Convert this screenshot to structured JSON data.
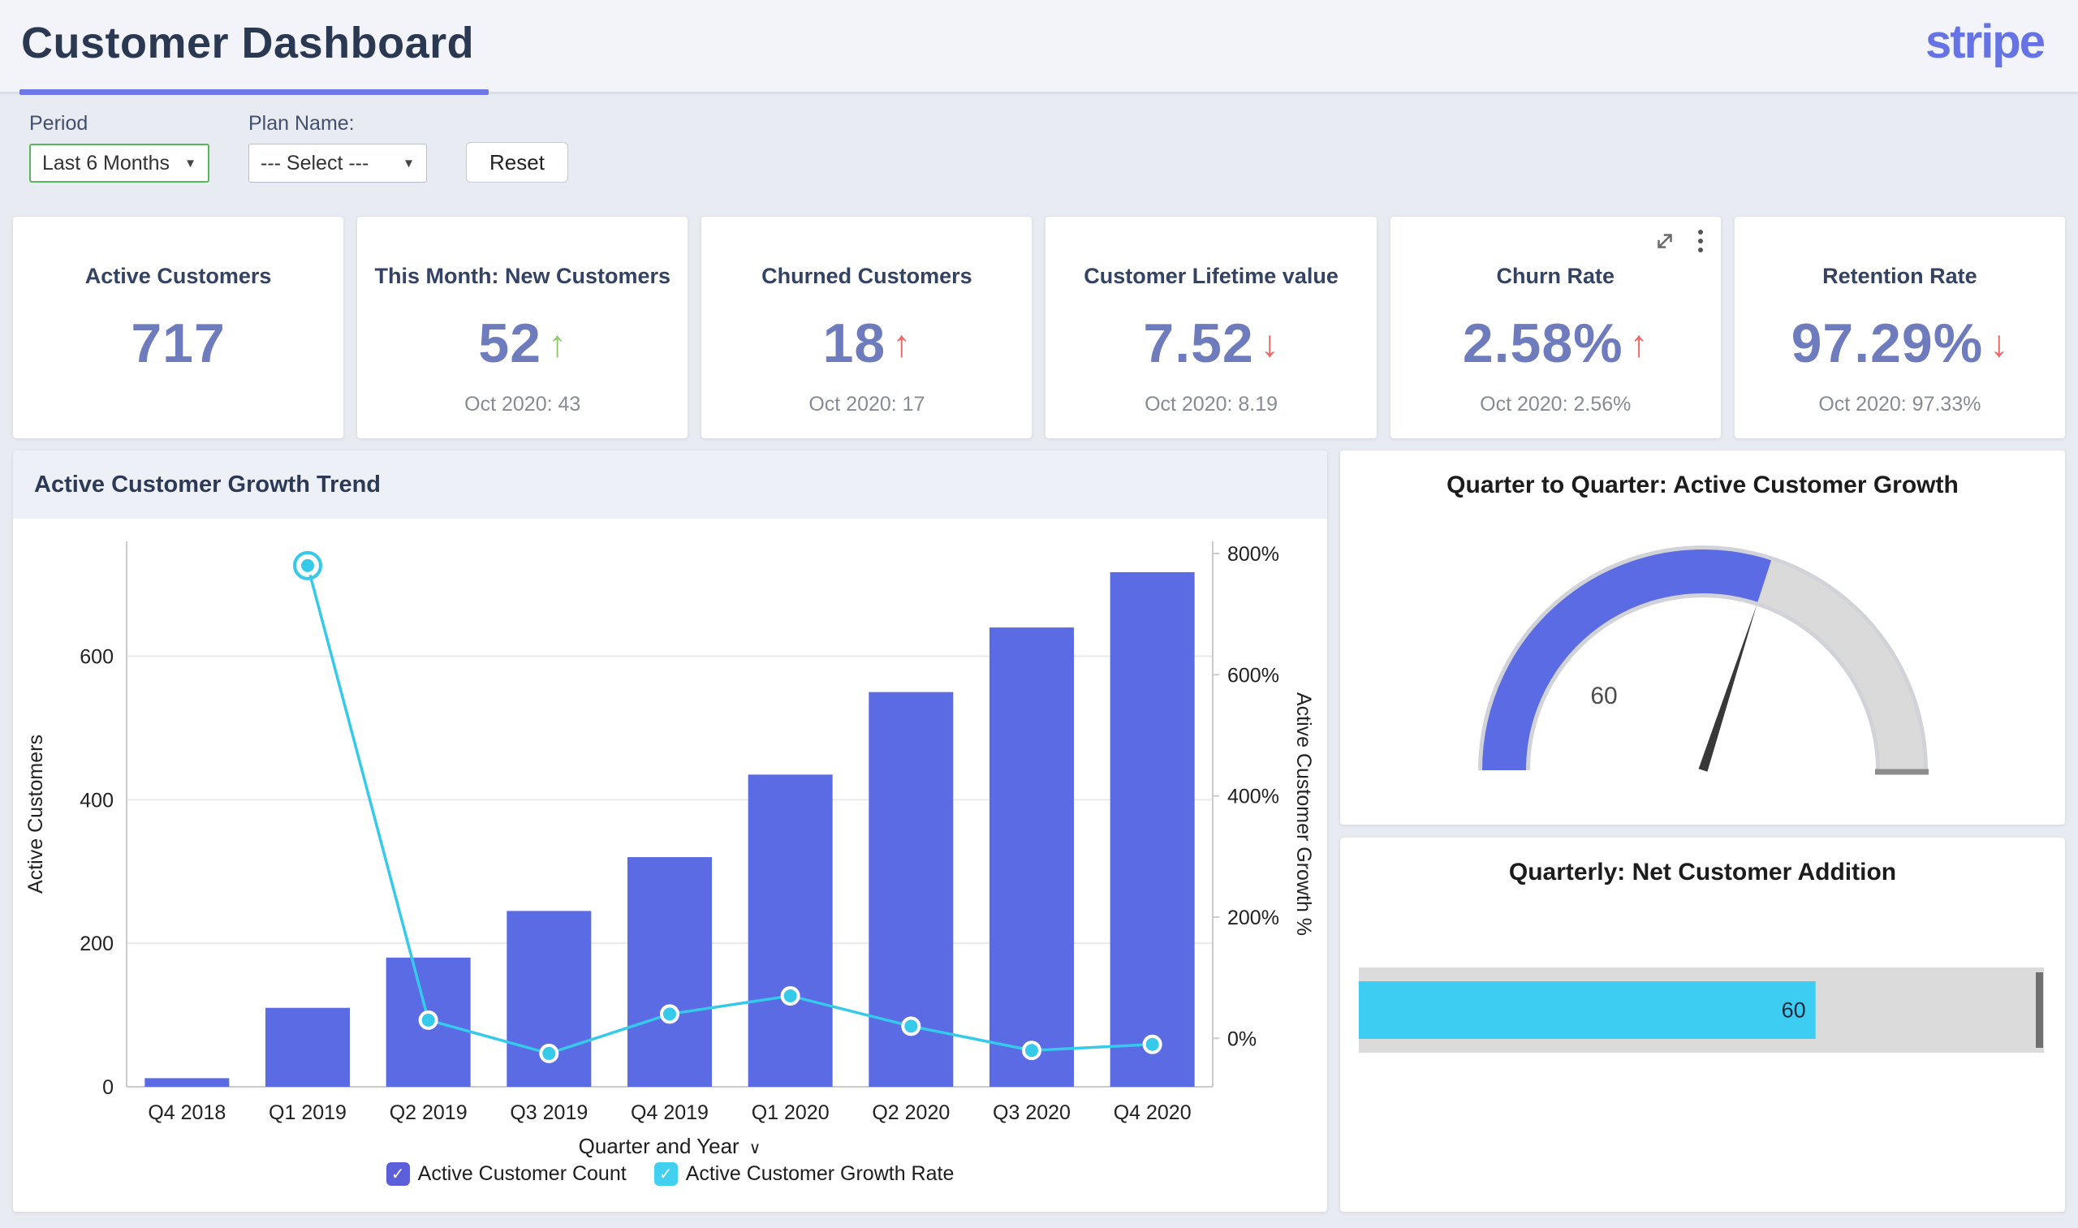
{
  "header": {
    "title": "Customer Dashboard",
    "brand": "stripe"
  },
  "filters": {
    "period_label": "Period",
    "period_value": "Last 6 Months",
    "plan_label": "Plan Name:",
    "plan_value": "--- Select ---",
    "reset_label": "Reset"
  },
  "icons": {
    "dropdown_caret": "▼",
    "chevron_down": "∨",
    "check": "✓",
    "arrow_up": "↑",
    "arrow_down": "↓",
    "kebab": "⋮",
    "expand": "⤢"
  },
  "colors": {
    "accent_indigo": "#5b6be3",
    "line_cyan": "#35c9ea",
    "legend_indigo": "#5b5fd9",
    "legend_cyan": "#41d0f0",
    "kpi_value": "#6e7cbe",
    "good_green": "#8ccb6e",
    "bad_red": "#f26565",
    "gauge_track": "#dadada",
    "hbar_cyan": "#3ecdf2",
    "hbar_track": "#dbdbdb",
    "marker_gray": "#8c8c8c"
  },
  "kpis": [
    {
      "title": "Active Customers",
      "value": "717",
      "sub": "",
      "arrow": "none",
      "arrow_color": "",
      "toolbar": false
    },
    {
      "title": "This Month: New Customers",
      "value": "52",
      "sub": "Oct 2020: 43",
      "arrow": "up",
      "arrow_color": "#8ccb6e",
      "toolbar": false
    },
    {
      "title": "Churned Customers",
      "value": "18",
      "sub": "Oct 2020: 17",
      "arrow": "up",
      "arrow_color": "#f26565",
      "toolbar": false
    },
    {
      "title": "Customer Lifetime value",
      "value": "7.52",
      "sub": "Oct 2020: 8.19",
      "arrow": "down",
      "arrow_color": "#f26565",
      "toolbar": false
    },
    {
      "title": "Churn Rate",
      "value": "2.58%",
      "sub": "Oct 2020: 2.56%",
      "arrow": "up",
      "arrow_color": "#f26565",
      "toolbar": true
    },
    {
      "title": "Retention Rate",
      "value": "97.29%",
      "sub": "Oct 2020: 97.33%",
      "arrow": "down",
      "arrow_color": "#f26565",
      "toolbar": false
    }
  ],
  "chart_data": [
    {
      "id": "growth_trend",
      "type": "bar",
      "title": "Active Customer Growth Trend",
      "categories": [
        "Q4 2018",
        "Q1 2019",
        "Q2 2019",
        "Q3 2019",
        "Q4 2019",
        "Q1 2020",
        "Q2 2020",
        "Q3 2020",
        "Q4 2020"
      ],
      "series": [
        {
          "name": "Active Customer Count",
          "type": "bar",
          "yaxis": "left",
          "color": "#5b6be3",
          "values": [
            12,
            110,
            180,
            245,
            320,
            435,
            550,
            640,
            717
          ]
        },
        {
          "name": "Active Customer Growth Rate",
          "type": "line",
          "yaxis": "right",
          "color": "#35c9ea",
          "values": [
            null,
            780,
            30,
            -25,
            40,
            70,
            20,
            -20,
            -10
          ]
        }
      ],
      "xlabel": "Quarter and Year",
      "ylabel_left": "Active Customers",
      "ylabel_right": "Active Customer Growth %",
      "yticks_left": [
        0,
        200,
        400,
        600
      ],
      "ylim_left": [
        0,
        760
      ],
      "yticks_right": [
        0,
        200,
        400,
        600,
        800
      ],
      "ylim_right": [
        -80,
        820
      ],
      "ytick_right_suffix": "%",
      "grid": true,
      "legend_position": "bottom"
    },
    {
      "id": "qoq_gauge",
      "type": "gauge",
      "title": "Quarter to Quarter: Active Customer Growth",
      "value": 60,
      "value_label": "60",
      "min": 0,
      "max": 100,
      "fill_color": "#5b6be3",
      "track_color": "#dadada",
      "needle_color": "#383838",
      "marker_color": "#8c8c8c"
    },
    {
      "id": "net_addition",
      "type": "bar",
      "orientation": "horizontal",
      "title": "Quarterly: Net Customer Addition",
      "values": [
        60
      ],
      "value_label": "60",
      "xlim": [
        0,
        90
      ],
      "bar_color": "#3ecdf2",
      "track_color": "#dbdbdb",
      "marker_color": "#6f6f6f"
    }
  ]
}
